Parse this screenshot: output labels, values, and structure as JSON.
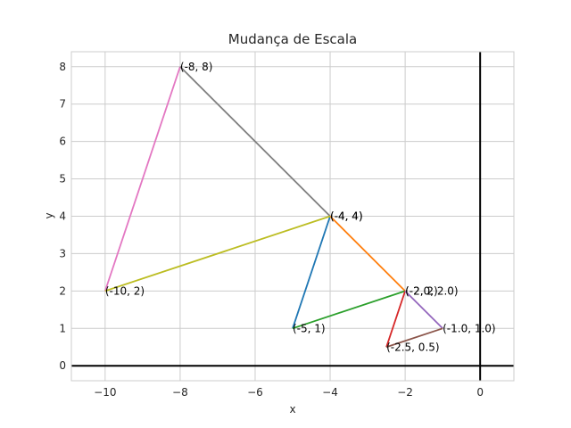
{
  "chart_data": {
    "type": "line",
    "title": "Mudança de Escala",
    "xlabel": "x",
    "ylabel": "y",
    "xlim": [
      -10.9,
      0.9
    ],
    "ylim": [
      -0.4,
      8.4
    ],
    "xticks": [
      -10,
      -8,
      -6,
      -4,
      -2,
      0
    ],
    "yticks": [
      0,
      1,
      2,
      3,
      4,
      5,
      6,
      7,
      8
    ],
    "xtick_labels": [
      "−10",
      "−8",
      "−6",
      "−4",
      "−2",
      "0"
    ],
    "ytick_labels": [
      "0",
      "1",
      "2",
      "3",
      "4",
      "5",
      "6",
      "7",
      "8"
    ],
    "grid": true,
    "series": [
      {
        "color": "#1f77b4",
        "x": [
          -5,
          -4
        ],
        "y": [
          1,
          4
        ]
      },
      {
        "color": "#ff7f0e",
        "x": [
          -4,
          -2
        ],
        "y": [
          4,
          2
        ]
      },
      {
        "color": "#2ca02c",
        "x": [
          -2,
          -5
        ],
        "y": [
          2,
          1
        ]
      },
      {
        "color": "#d62728",
        "x": [
          -2.5,
          -2.0
        ],
        "y": [
          0.5,
          2.0
        ]
      },
      {
        "color": "#9467bd",
        "x": [
          -2.0,
          -1.0
        ],
        "y": [
          2.0,
          1.0
        ]
      },
      {
        "color": "#8c564b",
        "x": [
          -1.0,
          -2.5
        ],
        "y": [
          1.0,
          0.5
        ]
      },
      {
        "color": "#e377c2",
        "x": [
          -10,
          -8
        ],
        "y": [
          2,
          8
        ]
      },
      {
        "color": "#7f7f7f",
        "x": [
          -8,
          -4
        ],
        "y": [
          8,
          4
        ]
      },
      {
        "color": "#bcbd22",
        "x": [
          -4,
          -10
        ],
        "y": [
          4,
          2
        ]
      }
    ],
    "point_labels": [
      {
        "x": -5,
        "y": 1,
        "text": "(-5, 1)"
      },
      {
        "x": -4,
        "y": 4,
        "text": "(-4, 4)"
      },
      {
        "x": -2,
        "y": 2,
        "text": "(-2, 2)"
      },
      {
        "x": -2.5,
        "y": 0.5,
        "text": "(-2.5, 0.5)"
      },
      {
        "x": -2.0,
        "y": 2.0,
        "text": "(-2.0, 2.0)"
      },
      {
        "x": -1.0,
        "y": 1.0,
        "text": "(-1.0, 1.0)"
      },
      {
        "x": -10,
        "y": 2,
        "text": "(-10, 2)"
      },
      {
        "x": -8,
        "y": 8,
        "text": "(-8, 8)"
      },
      {
        "x": -4,
        "y": 4,
        "text": "(-4, 4)"
      }
    ],
    "reference_lines": [
      {
        "orientation": "horizontal",
        "value": 0,
        "color": "#000000"
      },
      {
        "orientation": "vertical",
        "value": 0,
        "color": "#000000"
      }
    ]
  }
}
